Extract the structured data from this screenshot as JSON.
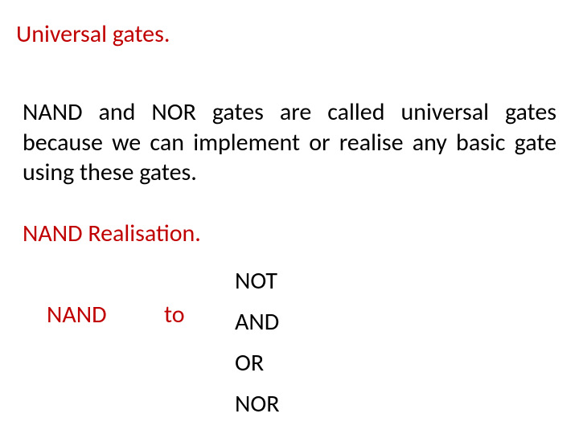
{
  "title": "Universal gates.",
  "body": "NAND and NOR gates are called universal gates because we can implement or realise any basic gate using these gates.",
  "sub_heading": "NAND Realisation.",
  "realisation": {
    "source": "NAND",
    "to": "to",
    "targets": [
      "NOT",
      "AND",
      "OR",
      "NOR"
    ]
  },
  "colors": {
    "heading": "#c00000",
    "text": "#000000",
    "background": "#ffffff"
  },
  "font": {
    "family": "Calibri",
    "title_size": 30,
    "body_size": 30
  }
}
